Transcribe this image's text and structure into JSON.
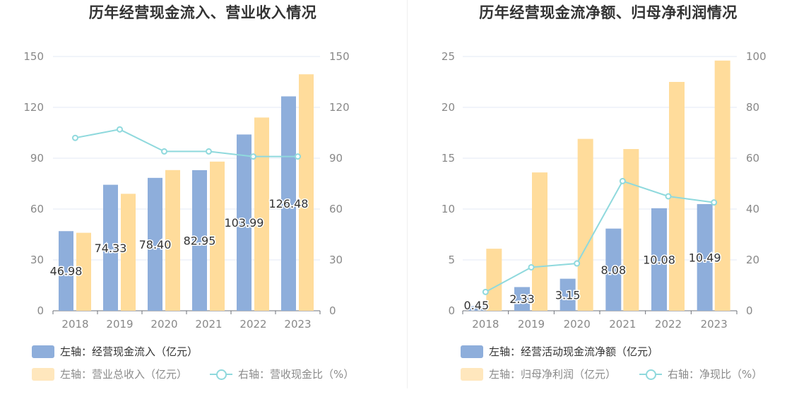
{
  "colors": {
    "bar1": "#8eaedb",
    "bar2": "#ffdc9b",
    "line": "#8fd9dd",
    "grid": "#e3e8f5",
    "axis": "#888888"
  },
  "chart_data": [
    {
      "type": "bar",
      "title": "历年经营现金流入、营业收入情况",
      "categories": [
        "2018",
        "2019",
        "2020",
        "2021",
        "2022",
        "2023"
      ],
      "y_left_ticks": [
        "0",
        "30",
        "60",
        "90",
        "120",
        "150"
      ],
      "y_right_ticks": [
        "0",
        "30",
        "60",
        "90",
        "120",
        "150"
      ],
      "ylim_left": [
        0,
        150
      ],
      "ylim_right": [
        0,
        150
      ],
      "series": [
        {
          "name": "左轴：经营现金流入（亿元）",
          "axis": "left",
          "kind": "bar",
          "values": [
            46.98,
            74.33,
            78.4,
            82.95,
            103.99,
            126.48
          ],
          "labels": [
            "46.98",
            "74.33",
            "78.40",
            "82.95",
            "103.99",
            "126.48"
          ]
        },
        {
          "name": "左轴：营业总收入（亿元）",
          "axis": "left",
          "kind": "bar",
          "values": [
            46,
            69,
            83,
            88,
            114,
            139.5
          ]
        },
        {
          "name": "右轴：营收现金比（%）",
          "axis": "right",
          "kind": "line",
          "values": [
            102,
            107,
            94,
            94,
            91,
            91
          ]
        }
      ],
      "grid": true
    },
    {
      "type": "bar",
      "title": "历年经营现金流净额、归母净利润情况",
      "categories": [
        "2018",
        "2019",
        "2020",
        "2021",
        "2022",
        "2023"
      ],
      "y_left_ticks": [
        "0",
        "5",
        "10",
        "15",
        "20",
        "25"
      ],
      "y_right_ticks": [
        "0",
        "20",
        "40",
        "60",
        "80",
        "100"
      ],
      "ylim_left": [
        0,
        25
      ],
      "ylim_right": [
        0,
        100
      ],
      "series": [
        {
          "name": "左轴：经营活动现金流净额（亿元）",
          "axis": "left",
          "kind": "bar",
          "values": [
            0.45,
            2.33,
            3.15,
            8.08,
            10.08,
            10.49
          ],
          "labels": [
            "0.45",
            "2.33",
            "3.15",
            "8.08",
            "10.08",
            "10.49"
          ]
        },
        {
          "name": "左轴：归母净利润（亿元）",
          "axis": "left",
          "kind": "bar",
          "values": [
            6.1,
            13.6,
            16.9,
            15.9,
            22.5,
            24.6
          ]
        },
        {
          "name": "右轴：净现比（%）",
          "axis": "right",
          "kind": "line",
          "values": [
            7.4,
            17.1,
            18.6,
            51,
            45,
            42.6
          ]
        }
      ],
      "grid": true
    }
  ]
}
